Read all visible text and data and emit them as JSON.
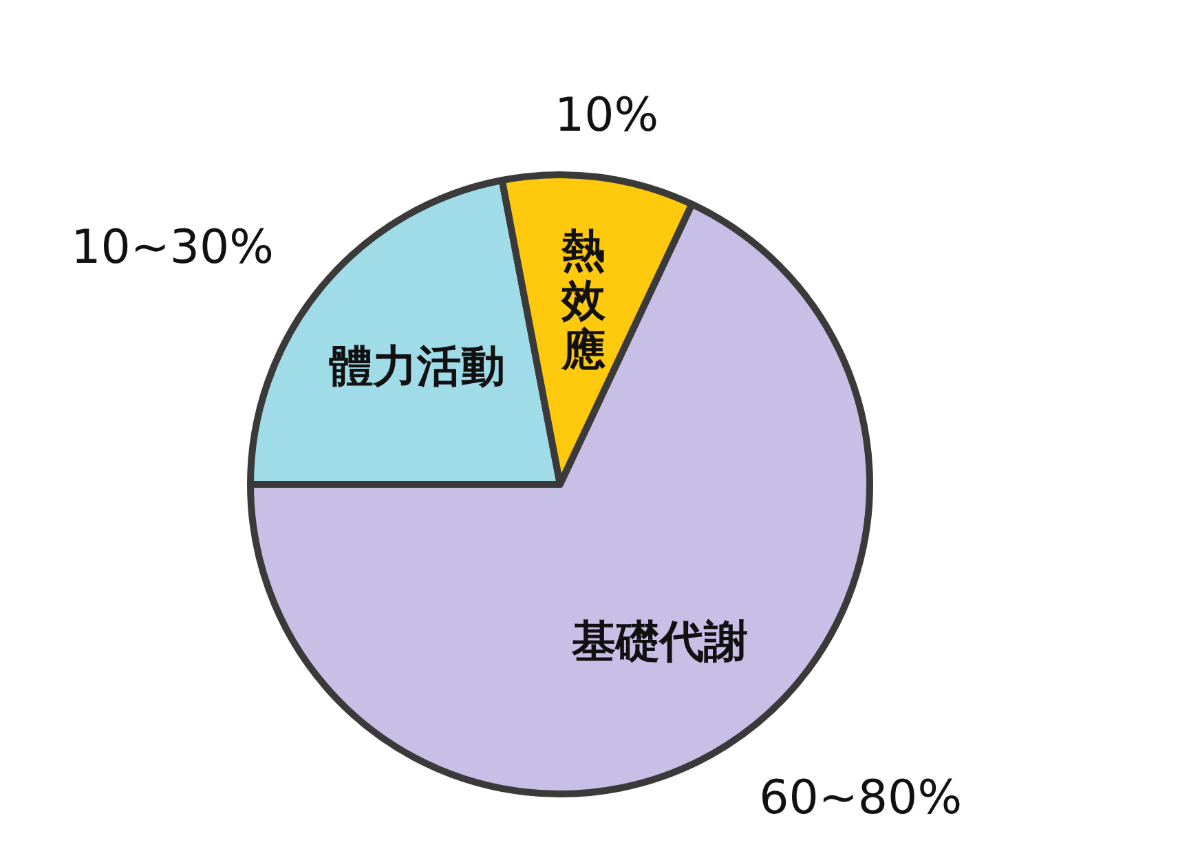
{
  "chart_data": {
    "type": "pie",
    "categories": [
      "體力活動",
      "熱效應",
      "基礎代謝"
    ],
    "values": [
      22,
      10,
      68
    ],
    "colors": [
      "#a0dbe8",
      "#ffc90e",
      "#c8bfe7"
    ],
    "annotations": [
      "10~30%",
      "10%",
      "60~80%"
    ]
  }
}
